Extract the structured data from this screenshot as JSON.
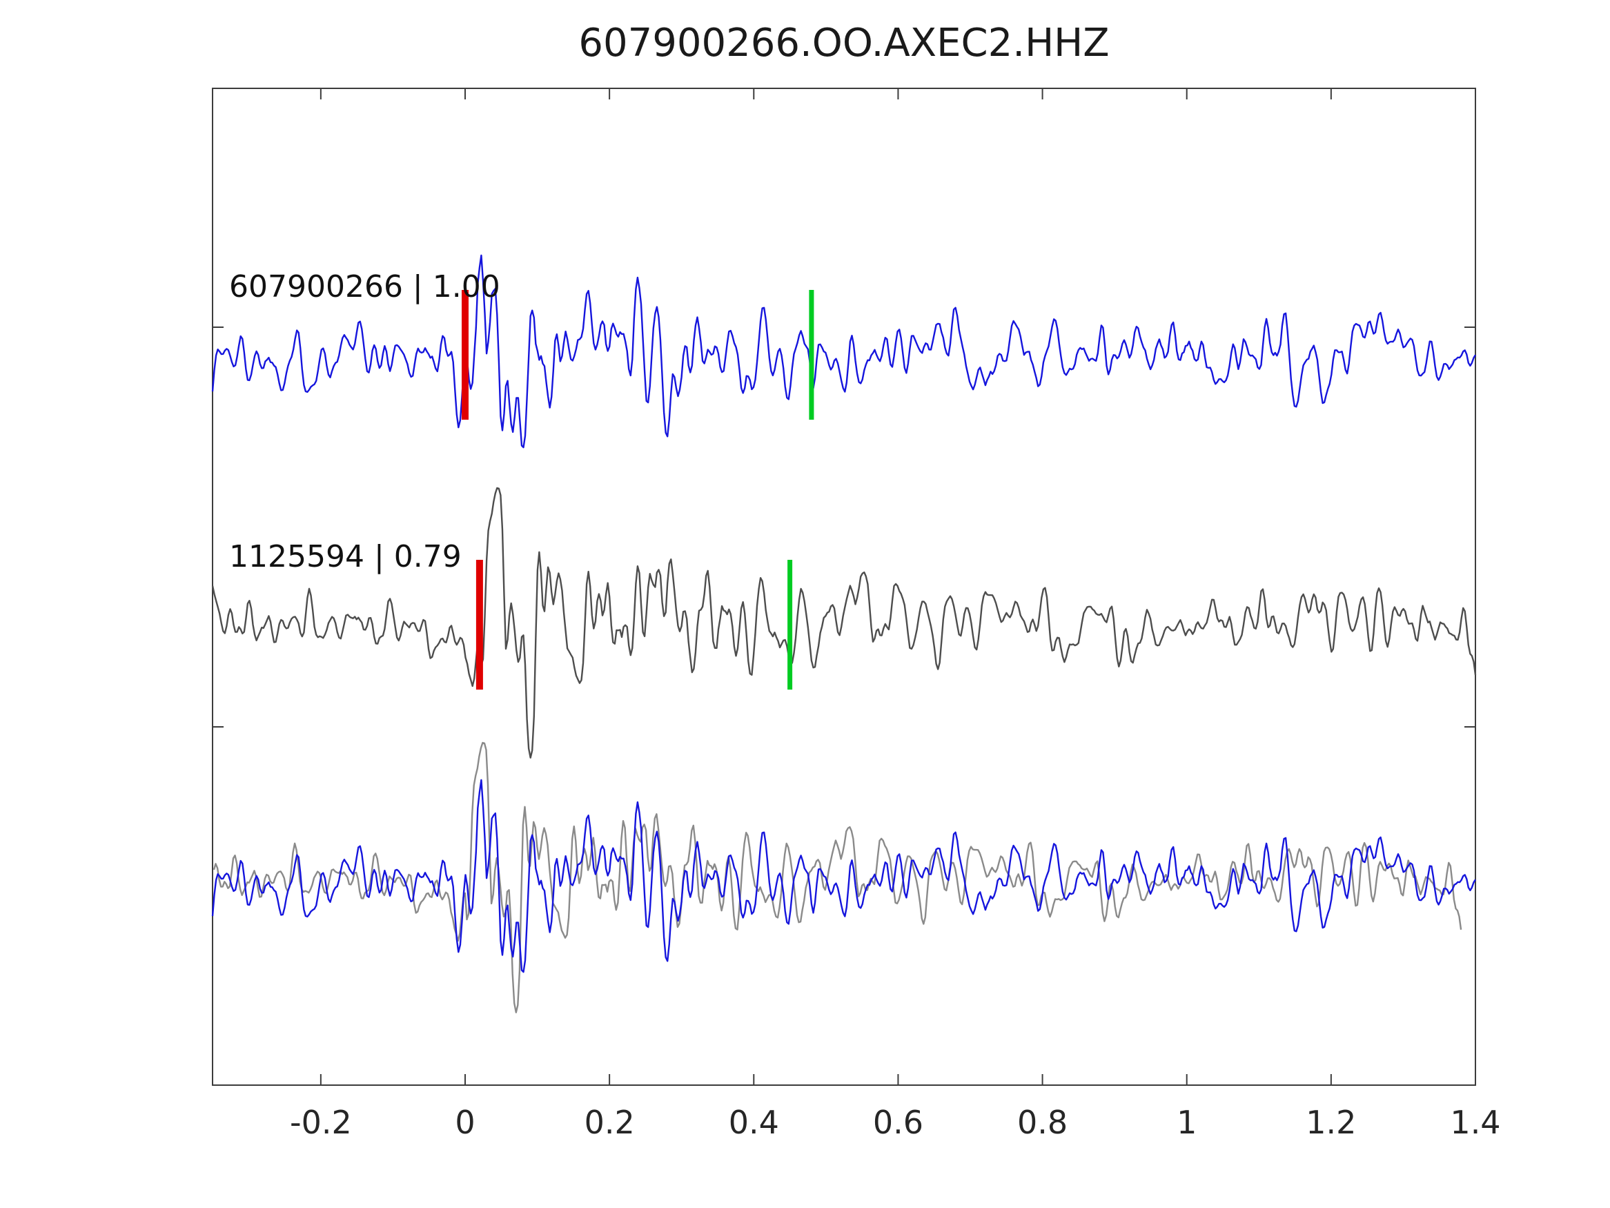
{
  "title": "607900266.OO.AXEC2.HHZ",
  "chart_data": {
    "type": "line",
    "title": "607900266.OO.AXEC2.HHZ",
    "subtitle": "",
    "xlabel": "",
    "ylabel": "",
    "xlim": [
      -0.35,
      1.4
    ],
    "xticks": [
      "-0.2",
      "0",
      "0.2",
      "0.4",
      "0.6",
      "0.8",
      "1",
      "1.2",
      "1.4"
    ],
    "xtick_values": [
      -0.2,
      0,
      0.2,
      0.4,
      0.6,
      0.8,
      1.0,
      1.2,
      1.4
    ],
    "grid": false,
    "legend_position": "none",
    "pick_marker_color": "#e00000",
    "window_marker_color": "#00cc22",
    "frame_color": "#3c3c3c",
    "rows": [
      {
        "kind": "single",
        "template_id": "607900266",
        "label": "607900266 | 1.00",
        "correlation": "1.00",
        "color": "#1515dd",
        "pick_time": 0.0,
        "window_time": 0.48,
        "onset": 0.0,
        "seed": 1337
      },
      {
        "kind": "single",
        "template_id": "1125594",
        "label": "1125594 | 0.79",
        "correlation": "0.79",
        "color": "#4d4d4d",
        "pick_time": 0.02,
        "window_time": 0.45,
        "onset": 0.02,
        "seed": 2024
      },
      {
        "kind": "overlay",
        "label": "",
        "components": [
          {
            "row": 1,
            "color": "#8a8a8a",
            "shift": -0.02
          },
          {
            "row": 0,
            "color": "#1515dd",
            "shift": 0
          }
        ]
      }
    ]
  }
}
